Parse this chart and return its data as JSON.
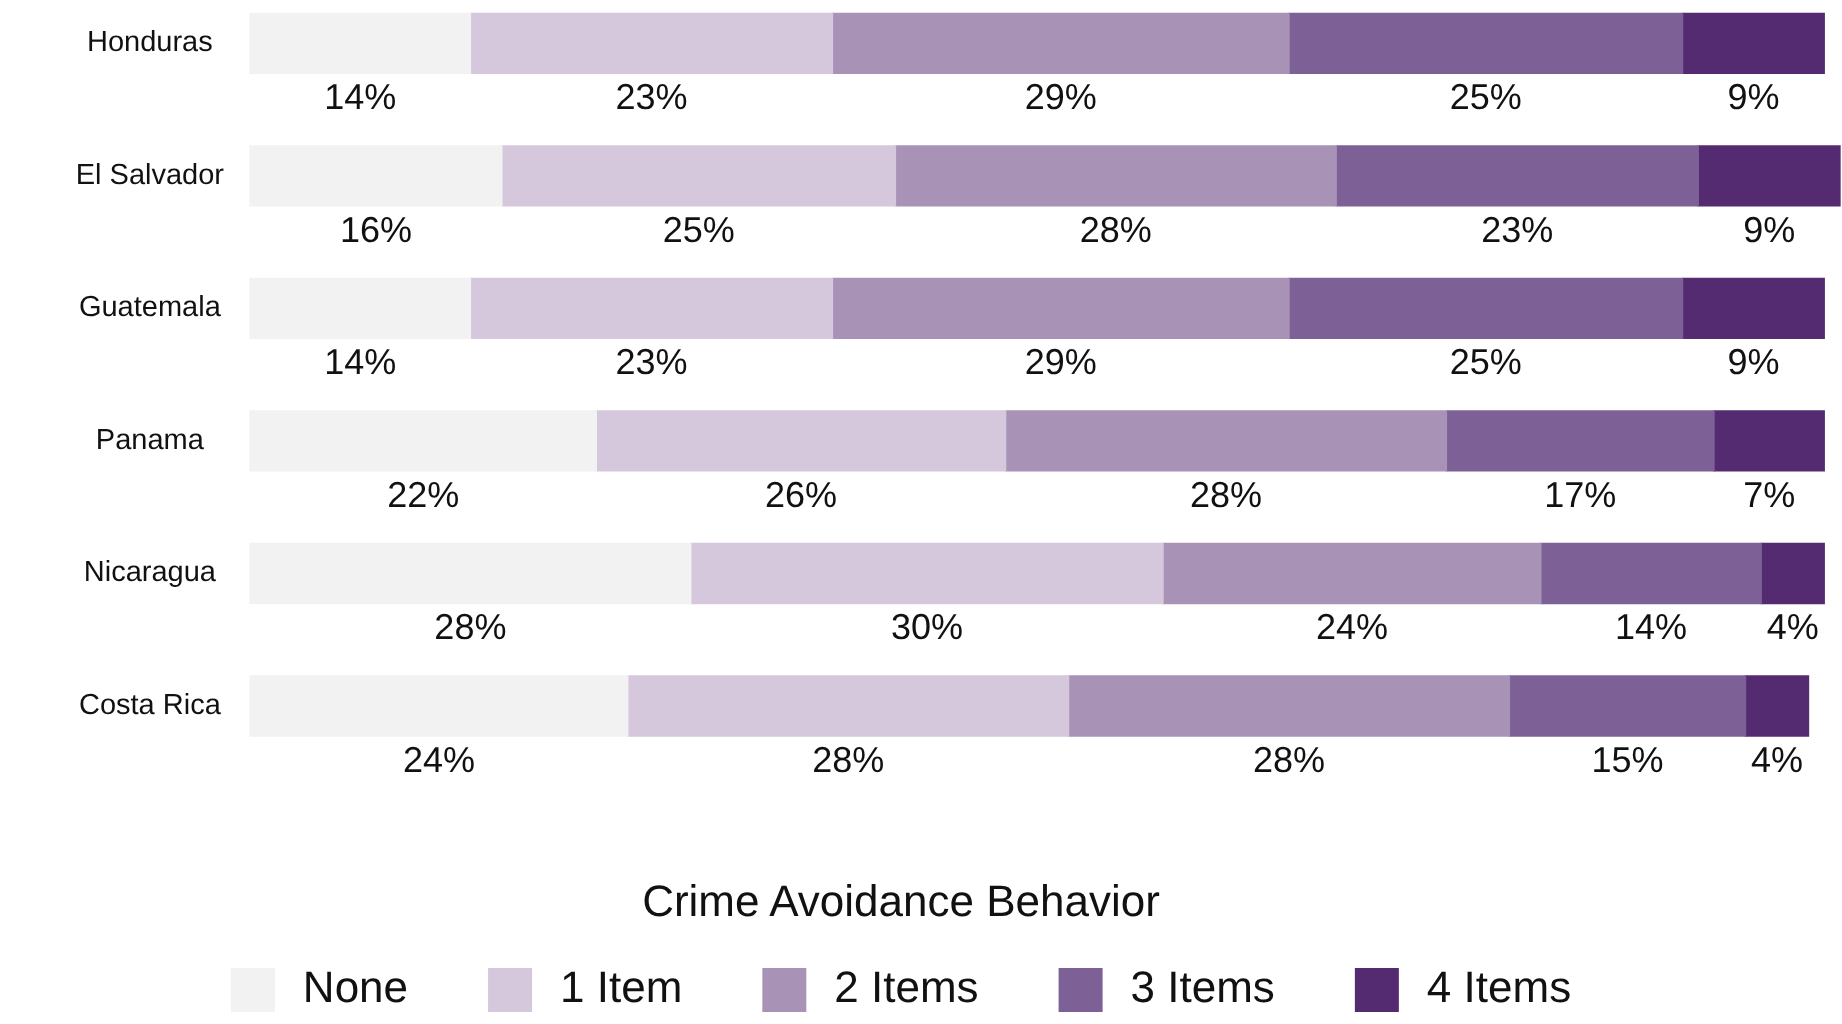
{
  "chart_data": {
    "type": "bar",
    "orientation": "horizontal",
    "stacked": true,
    "categories": [
      "Honduras",
      "El Salvador",
      "Guatemala",
      "Panama",
      "Nicaragua",
      "Costa Rica"
    ],
    "xlim": [
      0,
      101
    ],
    "tick_labels": "y",
    "legend": "bottom",
    "legend_title": "Crime Avoidance Behavior",
    "series": [
      {
        "name": "None",
        "color": "#f2f2f2",
        "values": [
          14,
          16,
          14,
          22,
          28,
          24
        ],
        "value_labels": [
          "14%",
          "16%",
          "14%",
          "22%",
          "28%",
          "24%"
        ]
      },
      {
        "name": "1 Item",
        "color": "#d5c8dc",
        "values": [
          23,
          25,
          23,
          26,
          30,
          28
        ],
        "value_labels": [
          "23%",
          "25%",
          "23%",
          "26%",
          "30%",
          "28%"
        ]
      },
      {
        "name": "2 Items",
        "color": "#a893b7",
        "values": [
          29,
          28,
          29,
          28,
          24,
          28
        ],
        "value_labels": [
          "29%",
          "28%",
          "29%",
          "28%",
          "24%",
          "28%"
        ]
      },
      {
        "name": "3 Items",
        "color": "#7d6096",
        "values": [
          25,
          23,
          25,
          17,
          14,
          15
        ],
        "value_labels": [
          "25%",
          "23%",
          "25%",
          "17%",
          "14%",
          "15%"
        ]
      },
      {
        "name": "4 Items",
        "color": "#542a71",
        "values": [
          9,
          9,
          9,
          7,
          4,
          4
        ],
        "value_labels": [
          "9%",
          "9%",
          "9%",
          "7%",
          "4%",
          "4%"
        ]
      }
    ]
  }
}
